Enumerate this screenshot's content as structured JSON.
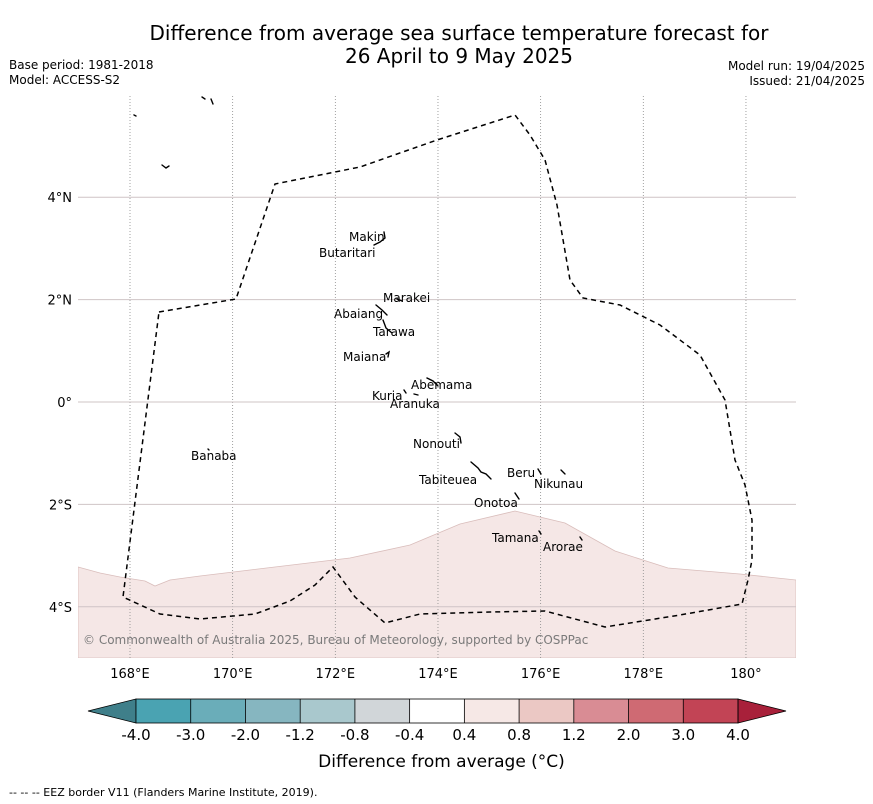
{
  "title_line1": "Difference from average sea surface temperature forecast for",
  "title_line2": "26 April to 9 May 2025",
  "meta_left": [
    "Base period: 1981-2018",
    "Model: ACCESS-S2"
  ],
  "meta_right": [
    "Model run: 19/04/2025",
    "Issued: 21/04/2025"
  ],
  "map": {
    "lon_range": [
      167,
      181
    ],
    "lat_range": [
      -5,
      6
    ],
    "x_ticks": [
      {
        "lon": 168,
        "label": "168°E"
      },
      {
        "lon": 170,
        "label": "170°E"
      },
      {
        "lon": 172,
        "label": "172°E"
      },
      {
        "lon": 174,
        "label": "174°E"
      },
      {
        "lon": 176,
        "label": "176°E"
      },
      {
        "lon": 178,
        "label": "178°E"
      },
      {
        "lon": 180,
        "label": "180°"
      }
    ],
    "y_ticks": [
      {
        "lat": 4,
        "label": "4°N"
      },
      {
        "lat": 2,
        "label": "2°N"
      },
      {
        "lat": 0,
        "label": "0°"
      },
      {
        "lat": -2,
        "label": "2°S"
      },
      {
        "lat": -4,
        "label": "4°S"
      }
    ],
    "islands": [
      {
        "name": "Makin",
        "lon": 172.95,
        "lat": 3.3
      },
      {
        "name": "Butaritari",
        "lon": 172.8,
        "lat": 3.05
      },
      {
        "name": "Marakei",
        "lon": 173.3,
        "lat": 2.0
      },
      {
        "name": "Abaiang",
        "lon": 172.9,
        "lat": 1.8
      },
      {
        "name": "Tarawa",
        "lon": 173.0,
        "lat": 1.4
      },
      {
        "name": "Maiana",
        "lon": 173.0,
        "lat": 0.95
      },
      {
        "name": "Abemama",
        "lon": 173.9,
        "lat": 0.4
      },
      {
        "name": "Kuria",
        "lon": 173.4,
        "lat": 0.22
      },
      {
        "name": "Aranuka",
        "lon": 173.6,
        "lat": 0.17
      },
      {
        "name": "Nonouti",
        "lon": 174.4,
        "lat": -0.65
      },
      {
        "name": "Tabiteuea",
        "lon": 174.9,
        "lat": -1.4
      },
      {
        "name": "Beru",
        "lon": 176.0,
        "lat": -1.35
      },
      {
        "name": "Nikunau",
        "lon": 176.45,
        "lat": -1.35
      },
      {
        "name": "Onotoa",
        "lon": 175.55,
        "lat": -1.85
      },
      {
        "name": "Tamana",
        "lon": 175.97,
        "lat": -2.5
      },
      {
        "name": "Arorae",
        "lon": 176.8,
        "lat": -2.65
      },
      {
        "name": "Banaba",
        "lon": 169.55,
        "lat": -0.87
      }
    ],
    "copyright": "© Commonwealth of Australia 2025, Bureau of Meteorology, supported by COSPPac"
  },
  "colorbar": {
    "ticks": [
      "-4.0",
      "-3.0",
      "-2.0",
      "-1.2",
      "-0.8",
      "-0.4",
      "0.4",
      "0.8",
      "1.2",
      "2.0",
      "3.0",
      "4.0"
    ],
    "colors": [
      "#3f7f8a",
      "#4aa3b2",
      "#6aadb9",
      "#86b6c0",
      "#a9c8cd",
      "#d1d6d9",
      "#ffffff",
      "#f6e8e6",
      "#ebc8c4",
      "#d98c94",
      "#cf6a73",
      "#c24455",
      "#a8203a"
    ],
    "label": "Difference from average (°C)"
  },
  "footer": "--  --  -- EEZ border V11 (Flanders Marine Institute, 2019)."
}
